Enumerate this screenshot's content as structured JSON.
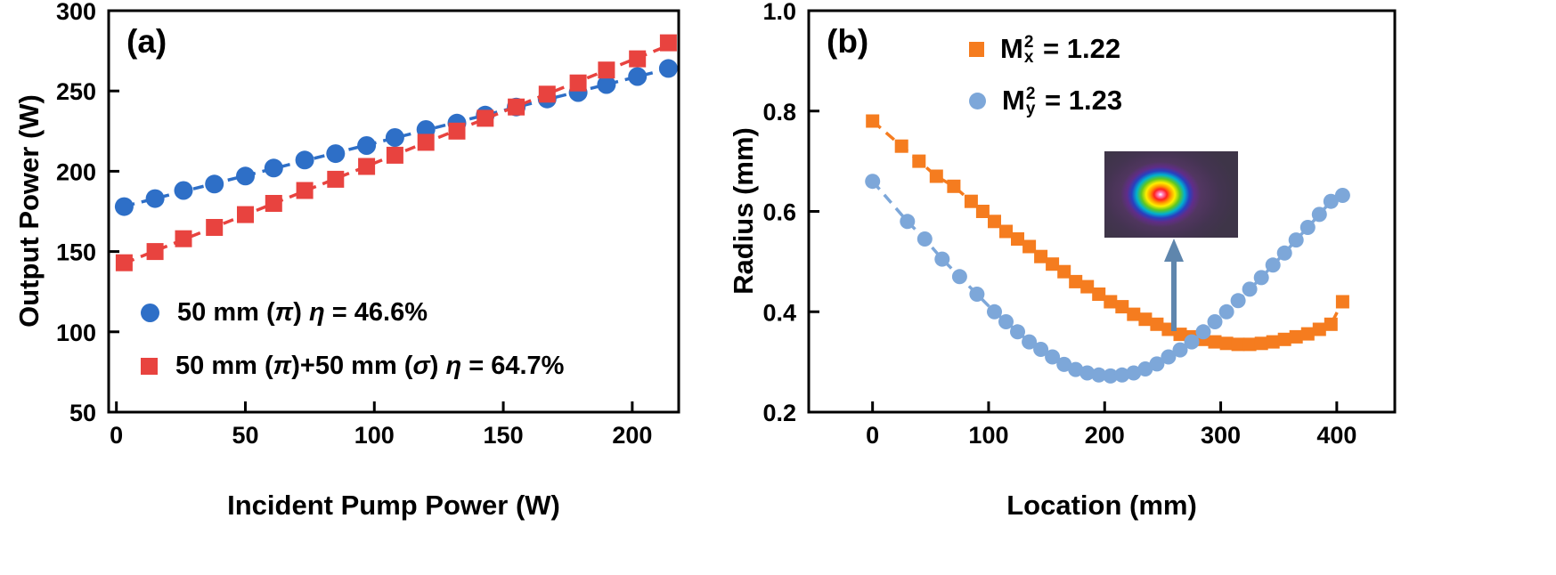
{
  "figure": {
    "panel_a": {
      "label": "(a)",
      "xlabel": "Incident Pump Power (W)",
      "ylabel": "Output Power (W)",
      "legend_row1": {
        "p1": "50 mm (",
        "pi": "π",
        "p2": ") ",
        "eta": "η",
        "p3": " = 46.6%"
      },
      "legend_row2": {
        "p1": "50 mm (",
        "pi1": "π",
        "p2": ")+50 mm (",
        "pi2": "σ",
        "p3": ") ",
        "eta": "η",
        "p4": " = 64.7%"
      }
    },
    "panel_b": {
      "label": "(b)",
      "xlabel": "Location (mm)",
      "ylabel": "Radius (mm)",
      "legend_row1": {
        "base": "M",
        "sup": "2",
        "sub": "x",
        "rest": " = 1.22"
      },
      "legend_row2": {
        "base": "M",
        "sup": "2",
        "sub": "y",
        "rest": " = 1.23"
      }
    }
  },
  "colors": {
    "blue": "#2e6fc7",
    "red": "#e8433f",
    "orange": "#f57c1f",
    "light_blue": "#7da7d9",
    "arrow": "#5f86ad",
    "frame": "#000000"
  },
  "chart_data": [
    {
      "type": "scatter",
      "panel": "a",
      "title": "",
      "xlabel": "Incident Pump Power (W)",
      "ylabel": "Output Power (W)",
      "xlim": [
        -3,
        218
      ],
      "ylim": [
        50,
        300
      ],
      "xticks": [
        0,
        50,
        100,
        150,
        200
      ],
      "xticklabels": [
        "0",
        "50",
        "100",
        "150",
        "200"
      ],
      "yticks": [
        50,
        100,
        150,
        200,
        250,
        300
      ],
      "yticklabels": [
        "50",
        "100",
        "150",
        "200",
        "250",
        "300"
      ],
      "grid": false,
      "legend_position": "lower-left",
      "series": [
        {
          "name": "50 mm (π) η = 46.6%",
          "marker": "circle",
          "color": "#2e6fc7",
          "fit": "linear",
          "x": [
            3,
            15,
            26,
            38,
            50,
            61,
            73,
            85,
            97,
            108,
            120,
            132,
            143,
            155,
            167,
            179,
            190,
            202,
            214
          ],
          "y": [
            178,
            183,
            188,
            192,
            197,
            202,
            207,
            211,
            216,
            221,
            226,
            230,
            235,
            240,
            245,
            249,
            254,
            259,
            264
          ]
        },
        {
          "name": "50 mm (π)+50 mm (σ) η = 64.7%",
          "marker": "square",
          "color": "#e8433f",
          "fit": "linear",
          "x": [
            3,
            15,
            26,
            38,
            50,
            61,
            73,
            85,
            97,
            108,
            120,
            132,
            143,
            155,
            167,
            179,
            190,
            202,
            214
          ],
          "y": [
            143,
            150,
            158,
            165,
            173,
            180,
            188,
            195,
            203,
            210,
            218,
            225,
            233,
            240,
            248,
            255,
            263,
            270,
            280
          ]
        }
      ]
    },
    {
      "type": "scatter",
      "panel": "b",
      "title": "",
      "xlabel": "Location (mm)",
      "ylabel": "Radius (mm)",
      "xlim": [
        -55,
        450
      ],
      "ylim": [
        0.2,
        1.0
      ],
      "xticks": [
        0,
        100,
        200,
        300,
        400
      ],
      "xticklabels": [
        "0",
        "100",
        "200",
        "300",
        "400"
      ],
      "yticks": [
        0.2,
        0.4,
        0.6,
        0.8,
        1.0
      ],
      "yticklabels": [
        "0.2",
        "0.4",
        "0.6",
        "0.8",
        "1.0"
      ],
      "grid": false,
      "legend_position": "top-center",
      "series": [
        {
          "name": "Mx2 = 1.22",
          "marker": "square",
          "color": "#f57c1f",
          "fit": "points",
          "x": [
            0,
            25,
            40,
            55,
            70,
            85,
            95,
            105,
            115,
            125,
            135,
            145,
            155,
            165,
            175,
            185,
            195,
            205,
            215,
            225,
            235,
            245,
            255,
            265,
            275,
            285,
            295,
            305,
            315,
            325,
            335,
            345,
            355,
            365,
            375,
            385,
            395,
            405
          ],
          "y": [
            0.78,
            0.73,
            0.7,
            0.67,
            0.65,
            0.62,
            0.6,
            0.58,
            0.56,
            0.545,
            0.53,
            0.51,
            0.495,
            0.48,
            0.46,
            0.45,
            0.435,
            0.42,
            0.41,
            0.395,
            0.385,
            0.375,
            0.365,
            0.355,
            0.35,
            0.345,
            0.34,
            0.337,
            0.335,
            0.335,
            0.337,
            0.34,
            0.345,
            0.35,
            0.356,
            0.365,
            0.375,
            0.42
          ]
        },
        {
          "name": "My2 = 1.23",
          "marker": "circle",
          "color": "#7da7d9",
          "fit": "points",
          "x": [
            0,
            30,
            45,
            60,
            75,
            90,
            105,
            115,
            125,
            135,
            145,
            155,
            165,
            175,
            185,
            195,
            205,
            215,
            225,
            235,
            245,
            255,
            265,
            275,
            285,
            295,
            305,
            315,
            325,
            335,
            345,
            355,
            365,
            375,
            385,
            395,
            405
          ],
          "y": [
            0.66,
            0.58,
            0.545,
            0.505,
            0.47,
            0.435,
            0.4,
            0.38,
            0.36,
            0.34,
            0.325,
            0.31,
            0.295,
            0.285,
            0.278,
            0.274,
            0.272,
            0.274,
            0.278,
            0.286,
            0.296,
            0.31,
            0.324,
            0.34,
            0.36,
            0.38,
            0.4,
            0.422,
            0.445,
            0.468,
            0.493,
            0.517,
            0.543,
            0.568,
            0.594,
            0.62,
            0.632
          ]
        }
      ]
    }
  ]
}
